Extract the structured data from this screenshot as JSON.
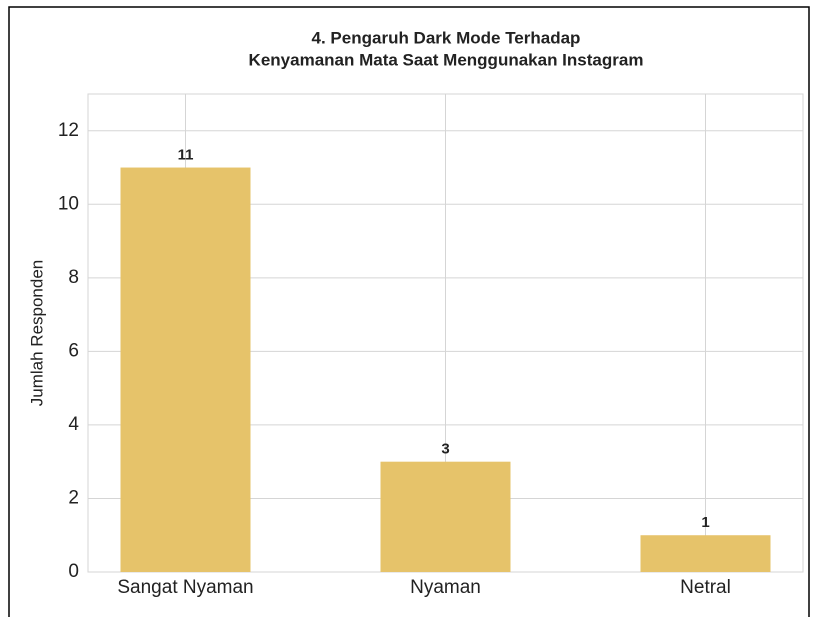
{
  "chart_data": {
    "type": "bar",
    "title": [
      "4. Pengaruh Dark Mode Terhadap",
      "Kenyamanan Mata Saat Menggunakan Instagram"
    ],
    "ylabel": "Jumlah Responden",
    "categories": [
      "Sangat Nyaman",
      "Nyaman",
      "Netral"
    ],
    "values": [
      11,
      3,
      1
    ],
    "color": "#e6c36a",
    "ylim": [
      0,
      13
    ],
    "yticks": [
      0,
      2,
      4,
      6,
      8,
      10,
      12
    ],
    "grid": true
  }
}
